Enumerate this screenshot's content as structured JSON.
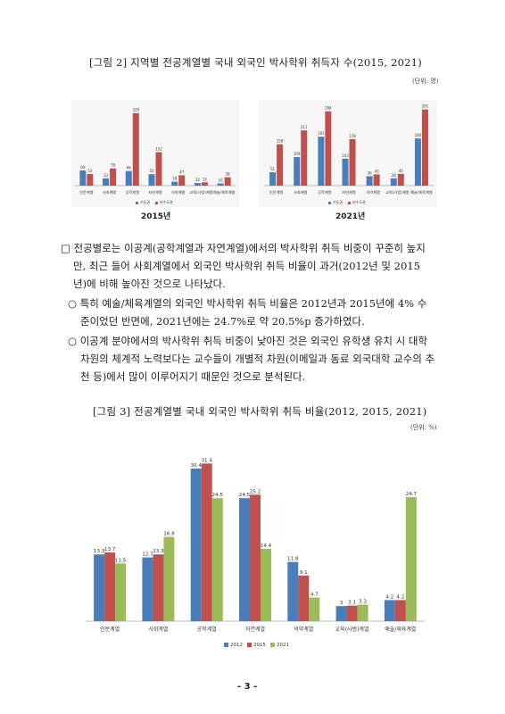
{
  "figure2": {
    "caption": "[그림 2] 지역별 전공계열별 국내 외국인 박사학위 취득자 수(2015, 2021)",
    "unit": "(단위: 명)"
  },
  "paragraph": {
    "bullet1": [
      "□ 전공별로는 이공계(공학계열과 자연계열)에서의 박사학위 취득 비중이 꾸준히 높지",
      "만, 최근 들어 사회계열에서 외국인 박사학위 취득 비율이 과거(2012년 및 2015",
      "년)에 비해 높아진 것으로 나타났다."
    ],
    "bullet2": [
      "○ 특히 예술/체육계열의 외국인 박사학위 취득 비율은 2012년과 2015년에 4% 수",
      "준이었던 반면에, 2021년에는 24.7%로 약 20.5%p 증가하였다."
    ],
    "bullet3": [
      "○ 이공계 분야에서의 박사학위 취득 비중이 낮아진 것은 외국인 유학생 유치 시 대학",
      "차원의 체계적 노력보다는 교수들이 개별적 차원(이메일과 동료 외국대학 교수의 추",
      "천 등)에서 많이 이루어지기 때문인 것으로 분석된다."
    ]
  },
  "figure3": {
    "caption": "[그림 3] 전공계열별 국내 외국인 박사학위 취득 비율(2012, 2015, 2021)",
    "unit": "(단위: %)"
  },
  "page_number": "- 3 -",
  "chart_data": [
    {
      "type": "bar",
      "title": "2015년",
      "categories": [
        "인문계열",
        "사회계열",
        "공학계열",
        "자연계열",
        "의약계열",
        "교육(사범)계열",
        "예술/체육계열"
      ],
      "series": [
        {
          "name": "수도권",
          "color": "#4a7ebb",
          "values": [
            69,
            33,
            66,
            52,
            18,
            12,
            10
          ]
        },
        {
          "name": "비수도권",
          "color": "#c0504d",
          "values": [
            53,
            78,
            329,
            152,
            47,
            15,
            38
          ]
        }
      ],
      "ylim": [
        0,
        340
      ]
    },
    {
      "type": "bar",
      "title": "2021년",
      "categories": [
        "인문계열",
        "사회계열",
        "공학계열",
        "자연계열",
        "의약계열",
        "교육(사범)계열",
        "예술/체육계열"
      ],
      "series": [
        {
          "name": "수도권",
          "color": "#4a7ebb",
          "values": [
            51,
            109,
            187,
            103,
            36,
            28,
            180
          ]
        },
        {
          "name": "비수도권",
          "color": "#c0504d",
          "values": [
            158,
            211,
            284,
            178,
            43,
            45,
            291
          ]
        }
      ],
      "ylim": [
        0,
        300
      ]
    },
    {
      "type": "bar",
      "categories": [
        "인문계열",
        "사회계열",
        "공학계열",
        "자연계열",
        "의약계열",
        "교육(사범)계열",
        "예술/체육계열"
      ],
      "series": [
        {
          "name": "2012",
          "color": "#4a7ebb",
          "values": [
            13.3,
            12.7,
            30.4,
            24.5,
            11.8,
            3.0,
            4.2
          ]
        },
        {
          "name": "2015",
          "color": "#c0504d",
          "values": [
            13.7,
            13.3,
            31.4,
            25.2,
            9.1,
            3.1,
            4.2
          ]
        },
        {
          "name": "2021",
          "color": "#9bbb59",
          "values": [
            11.5,
            16.8,
            24.5,
            14.4,
            4.7,
            3.3,
            24.7
          ]
        }
      ],
      "ylim": [
        0,
        32
      ]
    }
  ]
}
